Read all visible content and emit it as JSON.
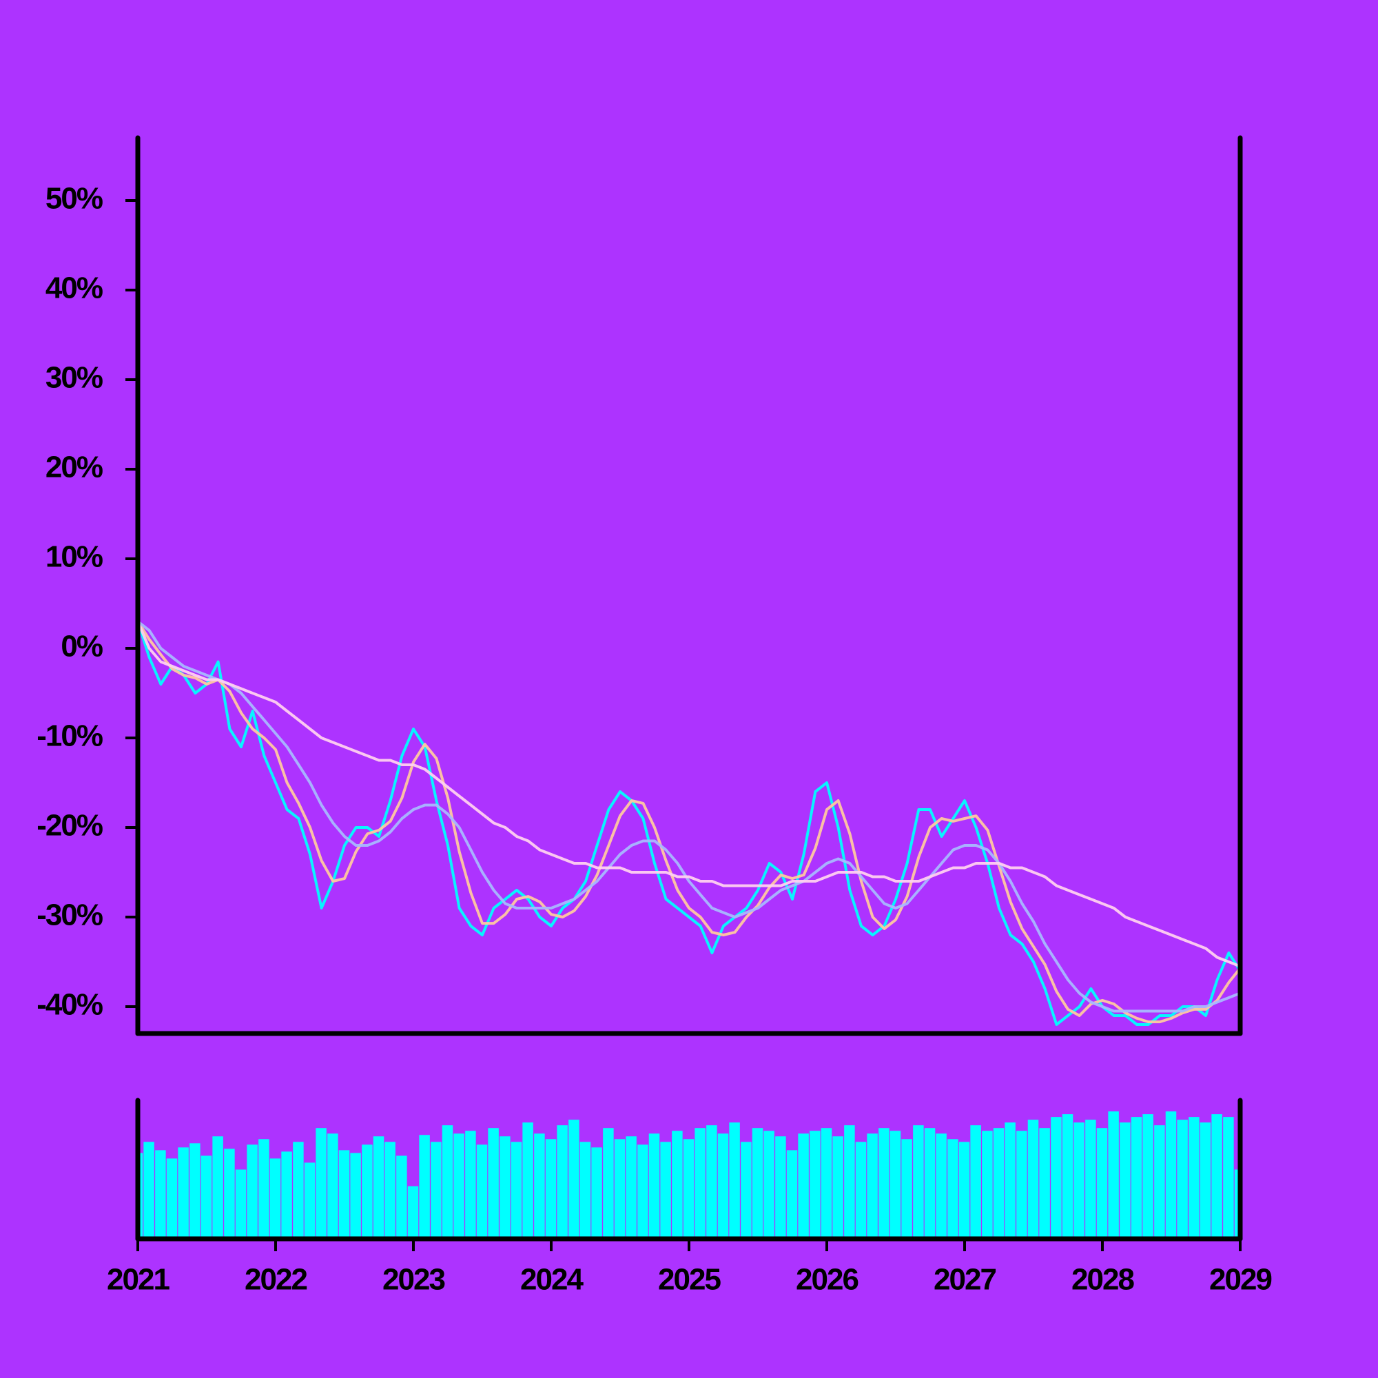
{
  "chart_data": [
    {
      "type": "line",
      "xlim": [
        2021,
        2029
      ],
      "xticks": [
        2021,
        2022,
        2023,
        2024,
        2025,
        2026,
        2027,
        2028,
        2029
      ],
      "ylim": [
        -43,
        57
      ],
      "yticks": [
        {
          "value": -40,
          "label": "-40%"
        },
        {
          "value": -30,
          "label": "-30%"
        },
        {
          "value": -20,
          "label": "-20%"
        },
        {
          "value": -10,
          "label": "-10%"
        },
        {
          "value": 0,
          "label": "0%"
        },
        {
          "value": 10,
          "label": "10%"
        },
        {
          "value": 20,
          "label": "20%"
        },
        {
          "value": 30,
          "label": "30%"
        },
        {
          "value": 40,
          "label": "40%"
        },
        {
          "value": 50,
          "label": "50%"
        }
      ],
      "x": [
        2021,
        2021.083,
        2021.167,
        2021.25,
        2021.333,
        2021.417,
        2021.5,
        2021.583,
        2021.667,
        2021.75,
        2021.833,
        2021.917,
        2022,
        2022.083,
        2022.167,
        2022.25,
        2022.333,
        2022.417,
        2022.5,
        2022.583,
        2022.667,
        2022.75,
        2022.833,
        2022.917,
        2023,
        2023.083,
        2023.167,
        2023.25,
        2023.333,
        2023.417,
        2023.5,
        2023.583,
        2023.667,
        2023.75,
        2023.833,
        2023.917,
        2024,
        2024.083,
        2024.167,
        2024.25,
        2024.333,
        2024.417,
        2024.5,
        2024.583,
        2024.667,
        2024.75,
        2024.833,
        2024.917,
        2025,
        2025.083,
        2025.167,
        2025.25,
        2025.333,
        2025.417,
        2025.5,
        2025.583,
        2025.667,
        2025.75,
        2025.833,
        2025.917,
        2026,
        2026.083,
        2026.167,
        2026.25,
        2026.333,
        2026.417,
        2026.5,
        2026.583,
        2026.667,
        2026.75,
        2026.833,
        2026.917,
        2027,
        2027.083,
        2027.167,
        2027.25,
        2027.333,
        2027.417,
        2027.5,
        2027.583,
        2027.667,
        2027.75,
        2027.833,
        2027.917,
        2028,
        2028.083,
        2028.167,
        2028.25,
        2028.333,
        2028.417,
        2028.5,
        2028.583,
        2028.667,
        2028.75,
        2028.833,
        2028.917,
        2029
      ],
      "series": [
        {
          "color": "#00ffff",
          "values": [
            3,
            -1,
            -4,
            -2,
            -3,
            -5,
            -4,
            -1.5,
            -9,
            -11,
            -7,
            -12,
            -15,
            -18,
            -19,
            -23,
            -29,
            -26,
            -22,
            -20,
            -20,
            -21,
            -17,
            -12,
            -9,
            -11,
            -17,
            -22,
            -29,
            -31,
            -32,
            -29,
            -28,
            -27,
            -28,
            -30,
            -31,
            -29,
            -28,
            -26,
            -22,
            -18,
            -16,
            -17,
            -19,
            -24,
            -28,
            -29,
            -30,
            -31,
            -34,
            -31,
            -30,
            -29,
            -27,
            -24,
            -25,
            -28,
            -23,
            -16,
            -15,
            -20,
            -27,
            -31,
            -32,
            -31,
            -28,
            -24,
            -18,
            -18,
            -21,
            -19,
            -17,
            -20,
            -24,
            -29,
            -32,
            -33,
            -35,
            -38,
            -42,
            -41,
            -40,
            -38,
            -40,
            -41,
            -41,
            -42,
            -42,
            -41,
            -41,
            -40,
            -40,
            -41,
            -37,
            -34,
            -36
          ]
        },
        {
          "color": "#ffc8a0",
          "values": [
            3,
            1,
            -0.7,
            -2.3,
            -3,
            -3.3,
            -4,
            -3.5,
            -4.8,
            -7.2,
            -9,
            -10,
            -11.3,
            -15,
            -17.3,
            -20,
            -23.7,
            -26,
            -25.7,
            -22.7,
            -20.7,
            -20.3,
            -19.3,
            -16.7,
            -12.7,
            -10.7,
            -12.3,
            -16.7,
            -22.7,
            -27.3,
            -30.7,
            -30.7,
            -29.7,
            -28,
            -27.7,
            -28.3,
            -29.7,
            -30,
            -29.3,
            -27.7,
            -25.3,
            -22,
            -18.7,
            -17,
            -17.3,
            -20,
            -23.7,
            -27,
            -29,
            -30,
            -31.7,
            -32,
            -31.7,
            -30,
            -28.7,
            -26.7,
            -25.3,
            -25.7,
            -25.3,
            -22.3,
            -18,
            -17,
            -20.7,
            -26,
            -30,
            -31.3,
            -30.3,
            -27.7,
            -23.3,
            -20,
            -19,
            -19.3,
            -19,
            -18.7,
            -20.3,
            -24.3,
            -28.3,
            -31.3,
            -33.3,
            -35.3,
            -38.3,
            -40.3,
            -41,
            -39.7,
            -39.3,
            -39.7,
            -40.7,
            -41.3,
            -41.7,
            -41.7,
            -41.3,
            -40.7,
            -40.3,
            -40.3,
            -39.3,
            -37.3,
            -35.7
          ]
        },
        {
          "color": "#a8b8ff",
          "values": [
            3,
            2,
            0,
            -1,
            -2,
            -2.5,
            -3,
            -3.5,
            -4,
            -5,
            -6.5,
            -8,
            -9.5,
            -11,
            -13,
            -15,
            -17.5,
            -19.5,
            -21,
            -22,
            -22,
            -21.5,
            -20.5,
            -19,
            -18,
            -17.5,
            -17.5,
            -18.5,
            -20,
            -22.5,
            -25,
            -27,
            -28.5,
            -29,
            -29,
            -29,
            -29,
            -28.5,
            -28,
            -27,
            -26,
            -24.5,
            -23,
            -22,
            -21.5,
            -21.5,
            -22.5,
            -24,
            -26,
            -27.5,
            -29,
            -29.5,
            -30,
            -29.5,
            -29,
            -28,
            -27,
            -26.5,
            -26,
            -25,
            -24,
            -23.5,
            -24,
            -25.5,
            -27,
            -28.5,
            -29,
            -28.5,
            -27,
            -25.5,
            -24,
            -22.5,
            -22,
            -22,
            -22.5,
            -24,
            -26,
            -28.5,
            -30.5,
            -33,
            -35,
            -37,
            -38.5,
            -39.5,
            -40,
            -40.5,
            -40.5,
            -40.5,
            -40.5,
            -40.5,
            -40.5,
            -40.5,
            -40,
            -40,
            -39.5,
            -39,
            -38.5
          ]
        },
        {
          "color": "#ffd0f0",
          "values": [
            3,
            0,
            -1.5,
            -2,
            -2.5,
            -3,
            -3.5,
            -3.5,
            -4,
            -4.5,
            -5,
            -5.5,
            -6,
            -7,
            -8,
            -9,
            -10,
            -10.5,
            -11,
            -11.5,
            -12,
            -12.5,
            -12.5,
            -13,
            -13,
            -13.5,
            -14.5,
            -15.5,
            -16.5,
            -17.5,
            -18.5,
            -19.5,
            -20,
            -21,
            -21.5,
            -22.5,
            -23,
            -23.5,
            -24,
            -24,
            -24.5,
            -24.5,
            -24.5,
            -25,
            -25,
            -25,
            -25,
            -25.5,
            -25.5,
            -26,
            -26,
            -26.5,
            -26.5,
            -26.5,
            -26.5,
            -26.5,
            -26.5,
            -26,
            -26,
            -26,
            -25.5,
            -25,
            -25,
            -25,
            -25.5,
            -25.5,
            -26,
            -26,
            -26,
            -25.5,
            -25,
            -24.5,
            -24.5,
            -24,
            -24,
            -24,
            -24.5,
            -24.5,
            -25,
            -25.5,
            -26.5,
            -27,
            -27.5,
            -28,
            -28.5,
            -29,
            -30,
            -30.5,
            -31,
            -31.5,
            -32,
            -32.5,
            -33,
            -33.5,
            -34.5,
            -35,
            -35.5
          ]
        }
      ]
    },
    {
      "type": "bar",
      "color": "#00ffff",
      "ylim": [
        0,
        100
      ],
      "xlim": [
        2021,
        2029
      ],
      "x": [
        2021,
        2021.083,
        2021.167,
        2021.25,
        2021.333,
        2021.417,
        2021.5,
        2021.583,
        2021.667,
        2021.75,
        2021.833,
        2021.917,
        2022,
        2022.083,
        2022.167,
        2022.25,
        2022.333,
        2022.417,
        2022.5,
        2022.583,
        2022.667,
        2022.75,
        2022.833,
        2022.917,
        2023,
        2023.083,
        2023.167,
        2023.25,
        2023.333,
        2023.417,
        2023.5,
        2023.583,
        2023.667,
        2023.75,
        2023.833,
        2023.917,
        2024,
        2024.083,
        2024.167,
        2024.25,
        2024.333,
        2024.417,
        2024.5,
        2024.583,
        2024.667,
        2024.75,
        2024.833,
        2024.917,
        2025,
        2025.083,
        2025.167,
        2025.25,
        2025.333,
        2025.417,
        2025.5,
        2025.583,
        2025.667,
        2025.75,
        2025.833,
        2025.917,
        2026,
        2026.083,
        2026.167,
        2026.25,
        2026.333,
        2026.417,
        2026.5,
        2026.583,
        2026.667,
        2026.75,
        2026.833,
        2026.917,
        2027,
        2027.083,
        2027.167,
        2027.25,
        2027.333,
        2027.417,
        2027.5,
        2027.583,
        2027.667,
        2027.75,
        2027.833,
        2027.917,
        2028,
        2028.083,
        2028.167,
        2028.25,
        2028.333,
        2028.417,
        2028.5,
        2028.583,
        2028.667,
        2028.75,
        2028.833,
        2028.917,
        2029
      ],
      "values": [
        62,
        70,
        64,
        58,
        66,
        69,
        60,
        74,
        65,
        50,
        68,
        72,
        58,
        63,
        70,
        55,
        80,
        76,
        64,
        62,
        68,
        74,
        70,
        60,
        38,
        75,
        70,
        82,
        76,
        78,
        68,
        80,
        74,
        70,
        84,
        76,
        72,
        82,
        86,
        70,
        66,
        80,
        72,
        74,
        68,
        76,
        70,
        78,
        72,
        80,
        82,
        76,
        84,
        70,
        80,
        78,
        74,
        64,
        76,
        78,
        80,
        74,
        82,
        70,
        76,
        80,
        78,
        72,
        82,
        80,
        76,
        72,
        70,
        82,
        78,
        80,
        84,
        78,
        86,
        80,
        88,
        90,
        84,
        86,
        80,
        92,
        84,
        88,
        90,
        82,
        92,
        86,
        88,
        84,
        90,
        88,
        50
      ],
      "xticks": [
        2021,
        2022,
        2023,
        2024,
        2025,
        2026,
        2027,
        2028,
        2029
      ]
    }
  ]
}
